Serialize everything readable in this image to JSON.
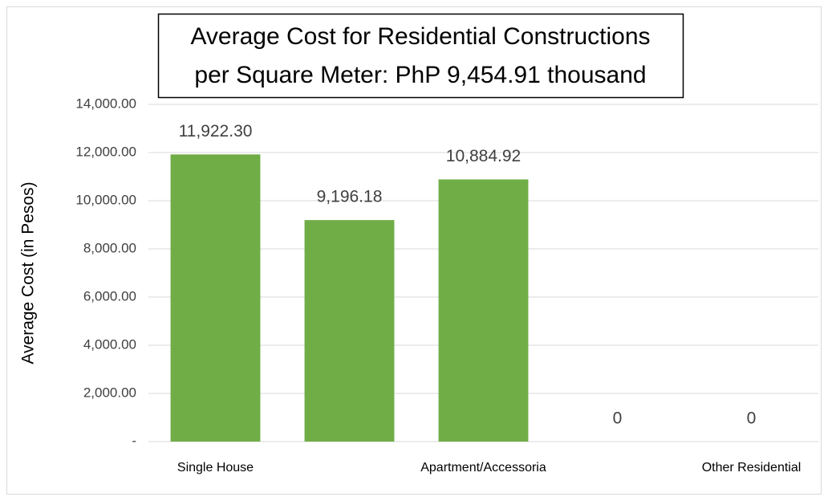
{
  "chart_data": {
    "type": "bar",
    "title": [
      "Average Cost for Residential Constructions",
      "per Square Meter: PhP 9,454.91 thousand"
    ],
    "y_label": "Average Cost (in Pesos)",
    "categories": [
      "Single House",
      null,
      "Apartment/Accessoria",
      null,
      "Other Residential"
    ],
    "values": [
      11922.3,
      9196.18,
      10884.92,
      0,
      0
    ],
    "value_labels": [
      "11,922.30",
      "9,196.18",
      "10,884.92",
      "0",
      "0"
    ],
    "color": "#70ad47",
    "ylim": [
      0,
      14000
    ],
    "yticks": [
      {
        "value": 0,
        "label": "-"
      },
      {
        "value": 2000,
        "label": "2,000.00"
      },
      {
        "value": 4000,
        "label": "4,000.00"
      },
      {
        "value": 6000,
        "label": "6,000.00"
      },
      {
        "value": 8000,
        "label": "8,000.00"
      },
      {
        "value": 10000,
        "label": "10,000.00"
      },
      {
        "value": 12000,
        "label": "12,000.00"
      },
      {
        "value": 14000,
        "label": "14,000.00"
      }
    ],
    "grid": true
  }
}
